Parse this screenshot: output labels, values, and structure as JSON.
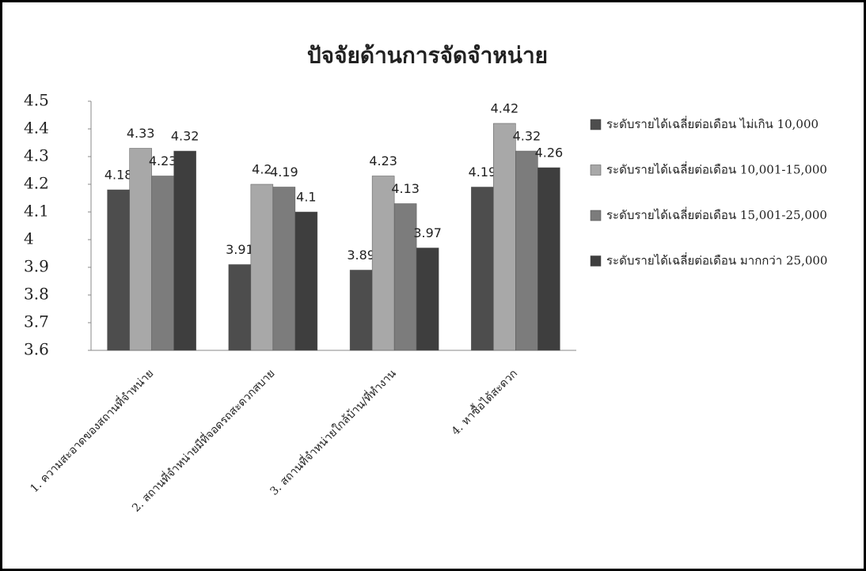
{
  "chart_data": {
    "type": "bar",
    "title": "ปัจจัยด้านการจัดจำหน่าย",
    "categories": [
      "1. ความสะอาดของสถานที่จำหน่าย",
      "2. สถานที่จำหน่ายมีที่จอดรถสะดวกสบาย",
      "3. สถานที่จำหน่ายใกล้บ้าน/ที่ทำงาน",
      "4. หาซื้อได้สะดวก"
    ],
    "series": [
      {
        "name": "ระดับรายได้เฉลี่ยต่อเดือน ไม่เกิน 10,000",
        "color": "#4d4d4d",
        "values": [
          4.18,
          3.91,
          3.89,
          4.19
        ]
      },
      {
        "name": "ระดับรายได้เฉลี่ยต่อเดือน 10,001-15,000",
        "color": "#a8a8a8",
        "values": [
          4.33,
          4.2,
          4.23,
          4.42
        ]
      },
      {
        "name": "ระดับรายได้เฉลี่ยต่อเดือน 15,001-25,000",
        "color": "#7c7c7c",
        "values": [
          4.23,
          4.19,
          4.13,
          4.32
        ]
      },
      {
        "name": "ระดับรายได้เฉลี่ยต่อเดือน มากกว่า 25,000",
        "color": "#3e3e3e",
        "values": [
          4.32,
          4.1,
          3.97,
          4.26
        ]
      }
    ],
    "ylim": [
      3.6,
      4.5
    ],
    "yticks": [
      3.6,
      3.7,
      3.8,
      3.9,
      4,
      4.1,
      4.2,
      4.3,
      4.4,
      4.5
    ],
    "grid": false,
    "legend": "right"
  }
}
